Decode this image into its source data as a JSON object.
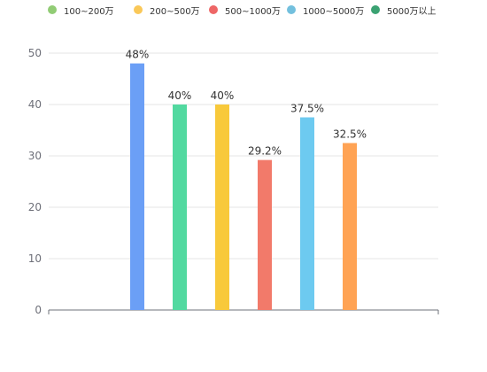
{
  "legend": [
    {
      "label": "100~200万",
      "color": "#91cc75"
    },
    {
      "label": "200~500万",
      "color": "#fac858"
    },
    {
      "label": "500~1000万",
      "color": "#ee6666"
    },
    {
      "label": "1000~5000万",
      "color": "#73c0de"
    },
    {
      "label": "5000万以上",
      "color": "#3ba272"
    }
  ],
  "chart_data": {
    "type": "bar",
    "title": "",
    "xlabel": "",
    "ylabel": "",
    "ylim": [
      0,
      50
    ],
    "yticks": [
      0,
      10,
      20,
      30,
      40,
      50
    ],
    "grid": true,
    "legend_position": "top",
    "bars": [
      {
        "value": 48,
        "label": "48%",
        "color": "#6b9ff6"
      },
      {
        "value": 40,
        "label": "40%",
        "color": "#52d9a0"
      },
      {
        "value": 40,
        "label": "40%",
        "color": "#f8c93b"
      },
      {
        "value": 29.2,
        "label": "29.2%",
        "color": "#f27a6a"
      },
      {
        "value": 37.5,
        "label": "37.5%",
        "color": "#6dcaf0"
      },
      {
        "value": 32.5,
        "label": "32.5%",
        "color": "#ffa354"
      }
    ]
  }
}
